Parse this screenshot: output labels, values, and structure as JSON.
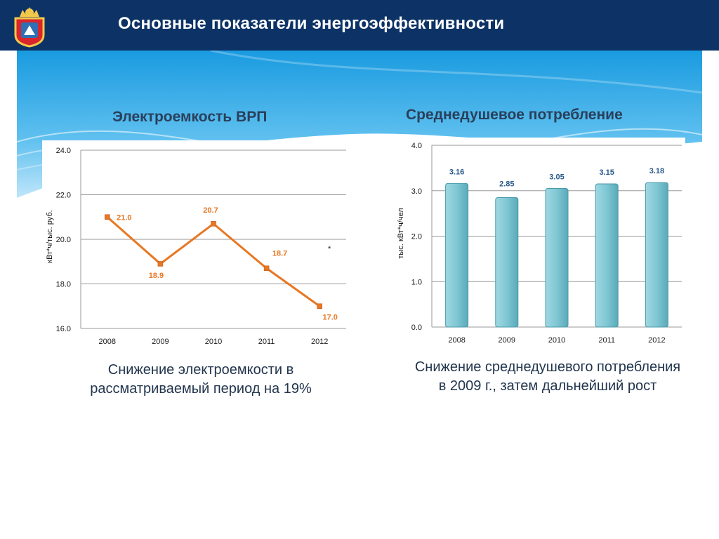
{
  "slide": {
    "title": "Основные показатели энергоэффективности"
  },
  "colors": {
    "header": "#0d3366",
    "line": "#e87722",
    "bar": "#7fc7d4",
    "bar_outline": "#4a9aaa",
    "label": "#2a5a8c",
    "axis_text": "#1a1a1a"
  },
  "icons": {
    "emblem": "regional-coat-of-arms-icon"
  },
  "left": {
    "title": "Электроемкость ВРП",
    "caption_line1": "Снижение электроемкости в",
    "caption_line2": "рассматриваемый период на 19%",
    "asterisk": "*"
  },
  "right": {
    "title": "Среднедушевое потребление",
    "caption_line1": "Снижение среднедушевого потребления",
    "caption_line2": "в 2009 г., затем дальнейший рост"
  },
  "chart_data": [
    {
      "type": "line",
      "categories": [
        "2008",
        "2009",
        "2010",
        "2011",
        "2012"
      ],
      "series": [
        {
          "values": [
            21.0,
            18.9,
            20.7,
            18.7,
            17.0
          ]
        }
      ],
      "data_labels": [
        "21.0",
        "18.9",
        "20.7",
        "18.7",
        "17.0"
      ],
      "title": "Электроемкость ВРП",
      "xlabel": "",
      "ylabel": "кВт*ч/тыс. руб.",
      "ylim": [
        16.0,
        24.0
      ],
      "yticks": [
        "16.0",
        "18.0",
        "20.0",
        "22.0",
        "24.0"
      ],
      "grid": true,
      "legend": "none"
    },
    {
      "type": "bar",
      "categories": [
        "2008",
        "2009",
        "2010",
        "2011",
        "2012"
      ],
      "values": [
        3.16,
        2.85,
        3.05,
        3.15,
        3.18
      ],
      "data_labels": [
        "3.16",
        "2.85",
        "3.05",
        "3.15",
        "3.18"
      ],
      "title": "Среднедушевое потребление",
      "xlabel": "",
      "ylabel": "тыс. кВт*ч/чел",
      "ylim": [
        0.0,
        4.0
      ],
      "yticks": [
        "0.0",
        "1.0",
        "2.0",
        "3.0",
        "4.0"
      ],
      "grid": true,
      "legend": "none"
    }
  ]
}
